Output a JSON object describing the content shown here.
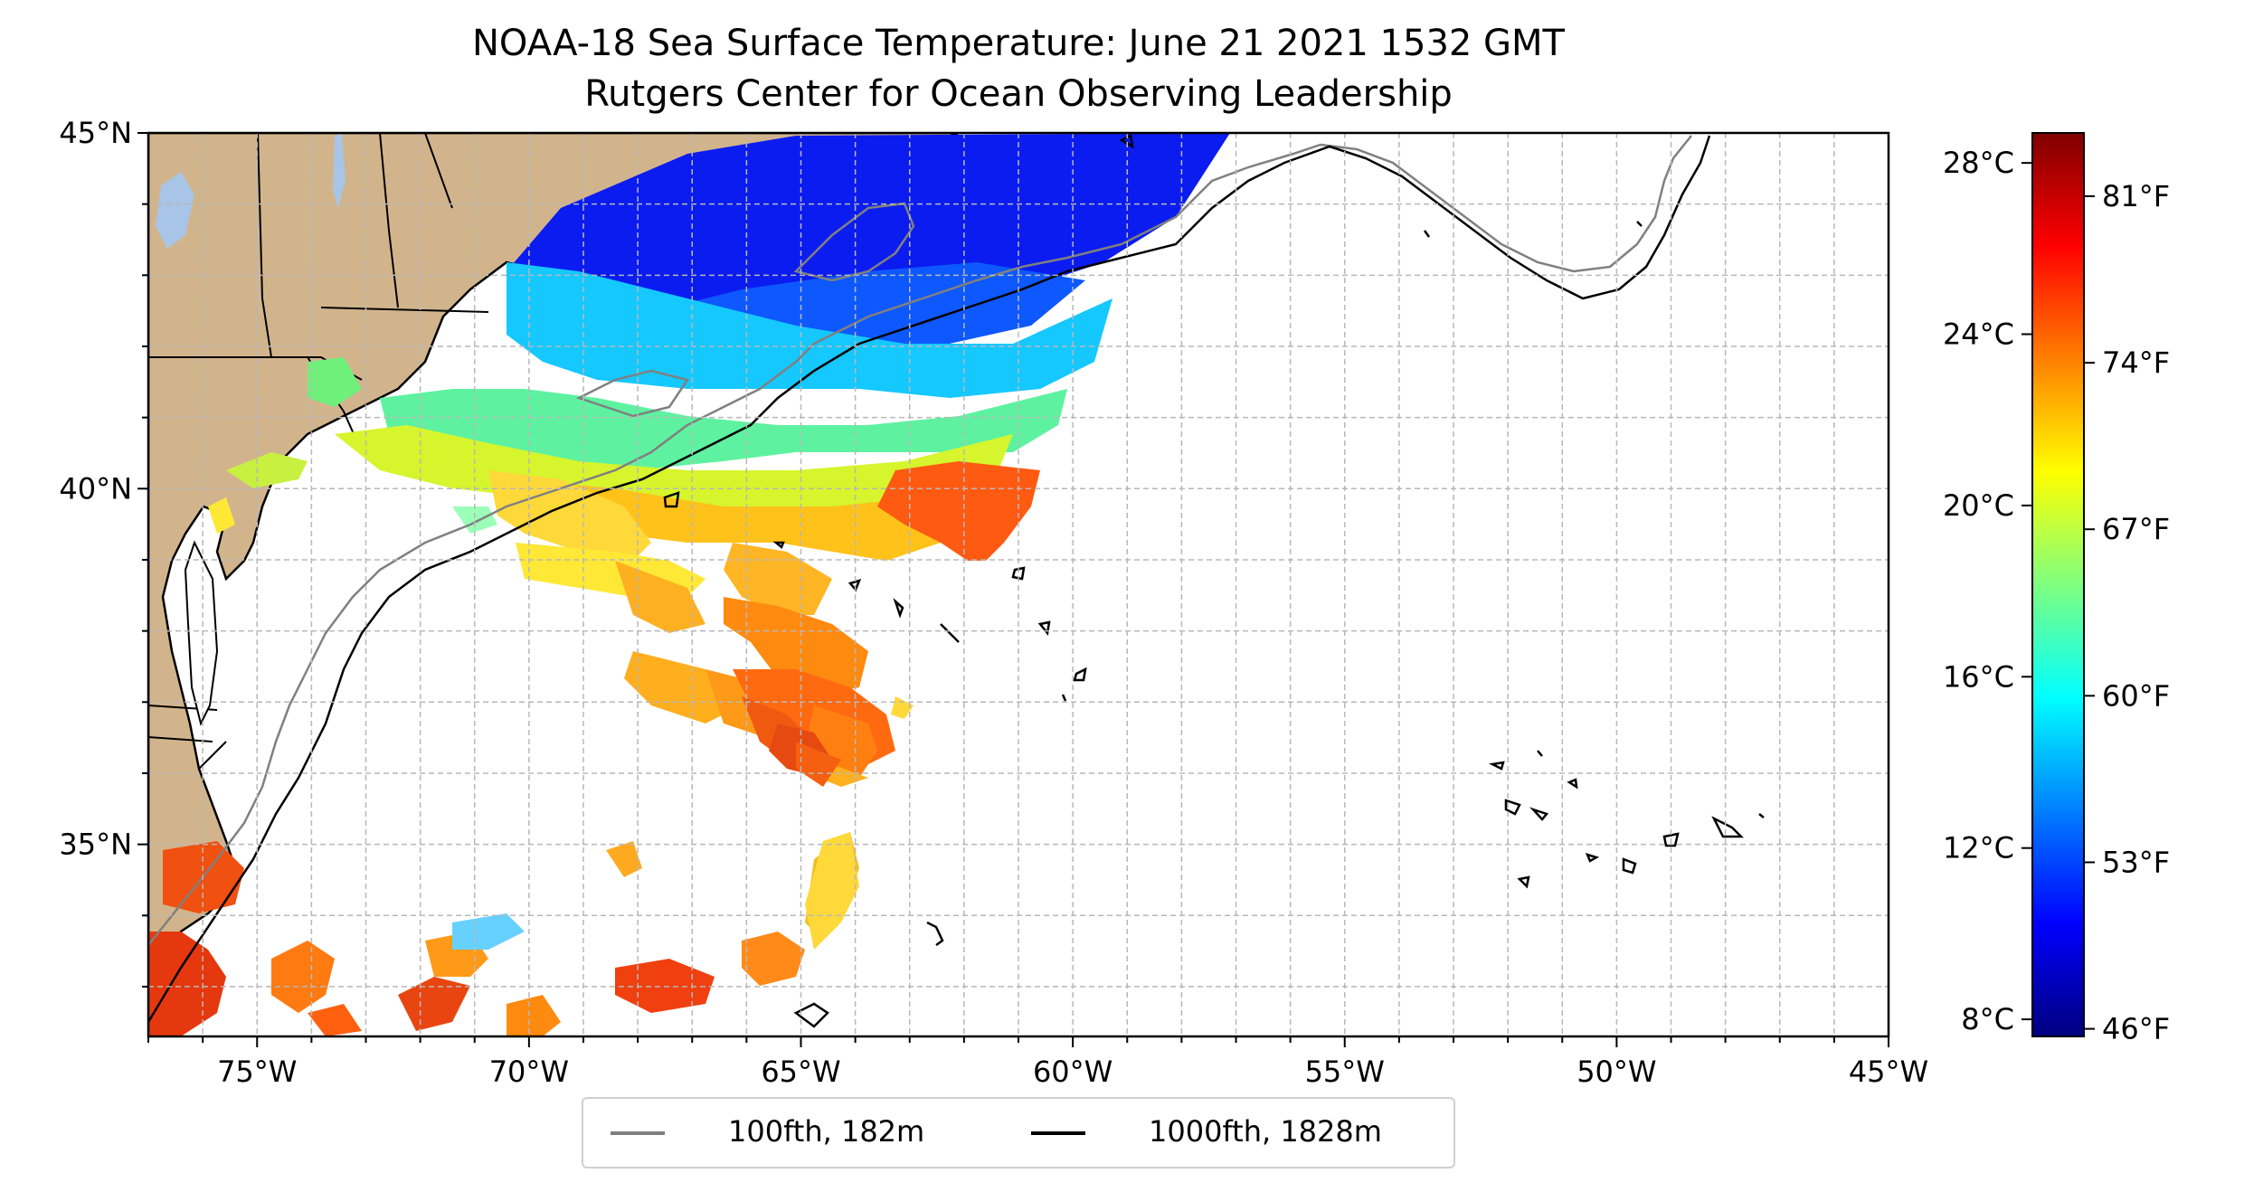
{
  "title": {
    "line1": "NOAA-18 Sea Surface Temperature: June 21 2021 1532 GMT",
    "line2": "Rutgers Center for Ocean Observing Leadership"
  },
  "map": {
    "lon_range": [
      -77,
      -45
    ],
    "lat_range": [
      32.3,
      45
    ],
    "grid": true,
    "colors": {
      "land": "#d2b48c",
      "lakes": "#a8c4e6",
      "coast": "#000000",
      "ocean_nodata": "#ffffff",
      "grid": "#b8b8b8"
    },
    "lon_ticks": [
      {
        "value": -75,
        "label": "75°W"
      },
      {
        "value": -70,
        "label": "70°W"
      },
      {
        "value": -65,
        "label": "65°W"
      },
      {
        "value": -60,
        "label": "60°W"
      },
      {
        "value": -55,
        "label": "55°W"
      },
      {
        "value": -50,
        "label": "50°W"
      },
      {
        "value": -45,
        "label": "45°W"
      }
    ],
    "lat_ticks": [
      {
        "value": 45,
        "label": "45°N"
      },
      {
        "value": 40,
        "label": "40°N"
      },
      {
        "value": 35,
        "label": "35°N"
      }
    ]
  },
  "colorbar": {
    "colormap": "jet",
    "range_c": [
      7.6,
      28.7
    ],
    "colors": [
      "#00007f",
      "#0000ff",
      "#007fff",
      "#00ffff",
      "#7fff7f",
      "#ffff00",
      "#ff7f00",
      "#ff0000",
      "#7f0000"
    ],
    "celsius_ticks": [
      {
        "value": 28,
        "label": "28°C"
      },
      {
        "value": 24,
        "label": "24°C"
      },
      {
        "value": 20,
        "label": "20°C"
      },
      {
        "value": 16,
        "label": "16°C"
      },
      {
        "value": 12,
        "label": "12°C"
      },
      {
        "value": 8,
        "label": "8°C"
      }
    ],
    "fahrenheit_ticks": [
      {
        "value": 81,
        "label": "81°F"
      },
      {
        "value": 74,
        "label": "74°F"
      },
      {
        "value": 67,
        "label": "67°F"
      },
      {
        "value": 60,
        "label": "60°F"
      },
      {
        "value": 53,
        "label": "53°F"
      },
      {
        "value": 46,
        "label": "46°F"
      }
    ]
  },
  "legend": {
    "items": [
      {
        "label": "100fth, 182m",
        "color": "#808080"
      },
      {
        "label": "1000fth, 1828m",
        "color": "#000000"
      }
    ]
  }
}
